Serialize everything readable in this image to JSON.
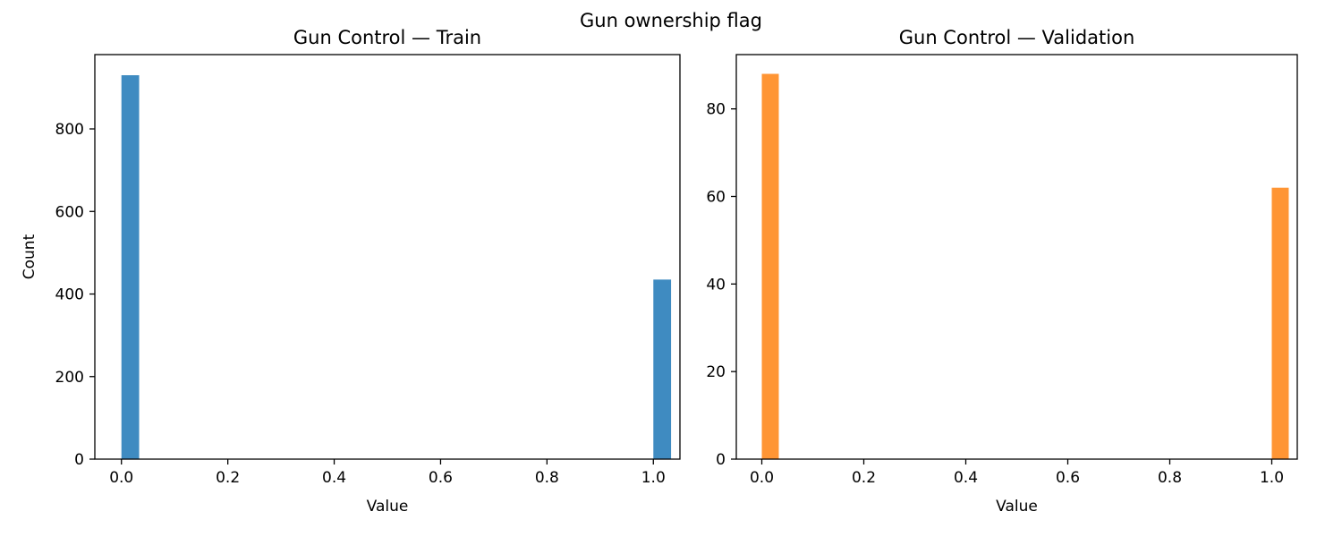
{
  "figure": {
    "suptitle": "Gun ownership flag"
  },
  "chart_data": [
    {
      "type": "bar",
      "title": "Gun Control — Train",
      "xlabel": "Value",
      "ylabel": "Count",
      "xlim": [
        -0.05,
        1.05
      ],
      "ylim": [
        0,
        980
      ],
      "xticks": [
        0.0,
        0.2,
        0.4,
        0.6,
        0.8,
        1.0
      ],
      "xtick_labels": [
        "0.0",
        "0.2",
        "0.4",
        "0.6",
        "0.8",
        "1.0"
      ],
      "yticks": [
        0,
        200,
        400,
        600,
        800
      ],
      "ytick_labels": [
        "0",
        "200",
        "400",
        "600",
        "800"
      ],
      "bin_width": 0.0333,
      "color": "#3f8bc1",
      "bars": [
        {
          "x": 0.0,
          "value": 930
        },
        {
          "x": 1.0,
          "value": 435
        }
      ],
      "grid": false
    },
    {
      "type": "bar",
      "title": "Gun Control — Validation",
      "xlabel": "Value",
      "ylabel": "",
      "xlim": [
        -0.05,
        1.05
      ],
      "ylim": [
        0,
        92.4
      ],
      "xticks": [
        0.0,
        0.2,
        0.4,
        0.6,
        0.8,
        1.0
      ],
      "xtick_labels": [
        "0.0",
        "0.2",
        "0.4",
        "0.6",
        "0.8",
        "1.0"
      ],
      "yticks": [
        0,
        20,
        40,
        60,
        80
      ],
      "ytick_labels": [
        "0",
        "20",
        "40",
        "60",
        "80"
      ],
      "bin_width": 0.0333,
      "color": "#ff9534",
      "bars": [
        {
          "x": 0.0,
          "value": 88
        },
        {
          "x": 1.0,
          "value": 62
        }
      ],
      "grid": false
    }
  ]
}
